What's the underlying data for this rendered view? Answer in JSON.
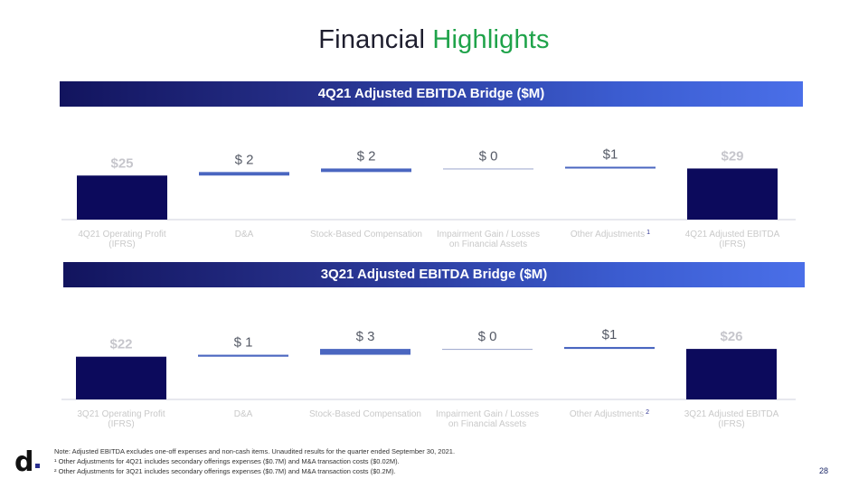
{
  "title": {
    "main": "Financial",
    "accent": "Highlights"
  },
  "colors": {
    "accent_green": "#1fa34a",
    "bar_dark": "#0c0a5c",
    "bar_mid": "#4a66c0",
    "bar_light": "#9aa6cc",
    "label_gray": "#c9c9c9"
  },
  "chart_data": [
    {
      "type": "bar",
      "title": "4Q21 Adjusted EBITDA Bridge ($M)",
      "subtype": "waterfall",
      "categories": [
        "4Q21 Operating Profit (IFRS)",
        "D&A",
        "Stock-Based Compensation",
        "Impairment Gain / Losses on Financial Assets",
        "Other Adjustments",
        "4Q21 Adjusted EBITDA (IFRS)"
      ],
      "category_lines": [
        [
          "4Q21 Operating Profit",
          "(IFRS)"
        ],
        [
          "D&A"
        ],
        [
          "Stock-Based Compensation"
        ],
        [
          "Impairment Gain / Losses",
          "on Financial Assets"
        ],
        [
          "Other Adjustments"
        ],
        [
          "4Q21 Adjusted EBITDA",
          "(IFRS)"
        ]
      ],
      "footnote_marks": [
        "",
        "",
        "",
        "",
        "1",
        ""
      ],
      "values": [
        25,
        2,
        2,
        0,
        1,
        29
      ],
      "kinds": [
        "total",
        "delta",
        "delta",
        "delta",
        "delta",
        "total"
      ],
      "labels": [
        "$25",
        "$ 2",
        "$ 2",
        "$ 0",
        "$1",
        "$29"
      ]
    },
    {
      "type": "bar",
      "title": "3Q21 Adjusted EBITDA Bridge ($M)",
      "subtype": "waterfall",
      "categories": [
        "3Q21 Operating Profit (IFRS)",
        "D&A",
        "Stock-Based Compensation",
        "Impairment Gain / Losses on Financial Assets",
        "Other Adjustments",
        "3Q21 Adjusted EBITDA (IFRS)"
      ],
      "category_lines": [
        [
          "3Q21 Operating Profit",
          "(IFRS)"
        ],
        [
          "D&A"
        ],
        [
          "Stock-Based Compensation"
        ],
        [
          "Impairment Gain / Losses",
          "on Financial Assets"
        ],
        [
          "Other Adjustments"
        ],
        [
          "3Q21 Adjusted EBITDA",
          "(IFRS)"
        ]
      ],
      "footnote_marks": [
        "",
        "",
        "",
        "",
        "2",
        ""
      ],
      "values": [
        22,
        1,
        3,
        0,
        1,
        26
      ],
      "kinds": [
        "total",
        "delta",
        "delta",
        "delta",
        "delta",
        "total"
      ],
      "labels": [
        "$22",
        "$ 1",
        "$ 3",
        "$ 0",
        "$1",
        "$26"
      ]
    }
  ],
  "logo": {
    "letter": "d"
  },
  "notes": {
    "main": "Note: Adjusted EBITDA excludes one-off expenses and non-cash items. Unaudited results for the quarter ended September 30, 2021.",
    "fn1": "¹ Other Adjustments for 4Q21 includes secondary offerings expenses ($0.7M) and M&A transaction costs ($0.02M).",
    "fn2": "² Other Adjustments for 3Q21 includes secondary offerings expenses ($0.7M) and M&A transaction costs ($0.2M)."
  },
  "page_number": "28"
}
